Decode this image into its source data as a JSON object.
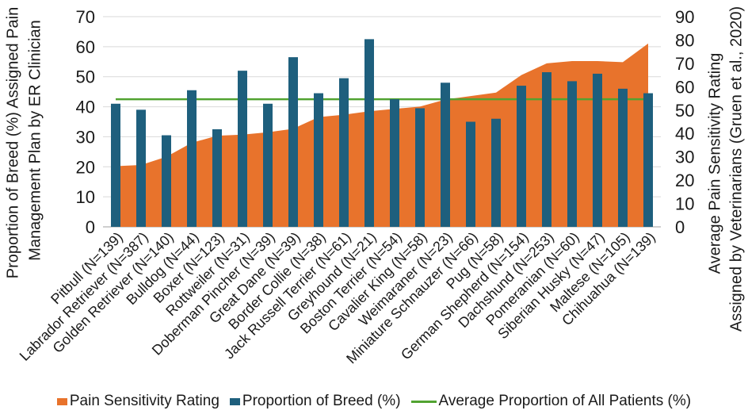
{
  "chart_data": {
    "type": "combo-bar-area-line",
    "categories": [
      "Pitbull (N=139)",
      "Labrador Retriever (N=387)",
      "Golden Retriever (N=140)",
      "Bulldog (N=44)",
      "Boxer (N=123)",
      "Rottweiler (N=31)",
      "Doberman Pincher (N=39)",
      "Great Dane (N=39)",
      "Border Collie (N=38)",
      "Jack Russell Terrier (N=61)",
      "Greyhound (N=21)",
      "Boston Terrier (N=54)",
      "Cavalier King (N=58)",
      "Weimaraner (N=23)",
      "Miniature Schnauzer (N=66)",
      "Pug (N=58)",
      "German Shepherd (N=154)",
      "Dachshund (N=253)",
      "Pomeranian (N=60)",
      "Siberian Husky (N=47)",
      "Maltese (N=105)",
      "Chihuahua (N=139)"
    ],
    "series": [
      {
        "name": "Pain Sensitivity Rating",
        "type": "area",
        "axis": "right",
        "color": "#E8732C",
        "values": [
          26,
          26.5,
          30,
          36,
          39,
          39.5,
          40.5,
          42,
          47,
          48,
          49.5,
          50.5,
          51.5,
          54.5,
          56,
          57.5,
          65,
          70,
          71,
          71,
          70.5,
          78.5
        ]
      },
      {
        "name": "Proportion of Breed (%)",
        "type": "bar",
        "axis": "left",
        "color": "#1E5F7D",
        "values": [
          41,
          39,
          30.5,
          45.5,
          32.5,
          52,
          41,
          56.5,
          44.5,
          49.5,
          62.5,
          42.5,
          39.5,
          48,
          35,
          36,
          47,
          51.5,
          48.5,
          51,
          46,
          44.5
        ]
      },
      {
        "name": "Average Proportion of All Patients (%)",
        "type": "line",
        "axis": "left",
        "color": "#52A331",
        "value": 42.5
      }
    ],
    "left_axis": {
      "title_line1": "Proportion of Breed (%) Assigned Pain",
      "title_line2": "Management Plan by ER Clinician",
      "min": 0,
      "max": 70,
      "tick_step": 10,
      "ticks": [
        0,
        10,
        20,
        30,
        40,
        50,
        60,
        70
      ]
    },
    "right_axis": {
      "title_line1": "Average Pain Sensitivity Rating",
      "title_line2": "Assigned by Veterinarians (Gruen et al., 2020)",
      "min": 0,
      "max": 90,
      "tick_step": 10,
      "ticks": [
        0,
        10,
        20,
        30,
        40,
        50,
        60,
        70,
        80,
        90
      ]
    },
    "grid": {
      "show": true,
      "color": "#D9D9D9"
    },
    "axis_line_color": "#BFBFBF",
    "text_color": "#1A1A1A",
    "legend_position": "bottom"
  }
}
